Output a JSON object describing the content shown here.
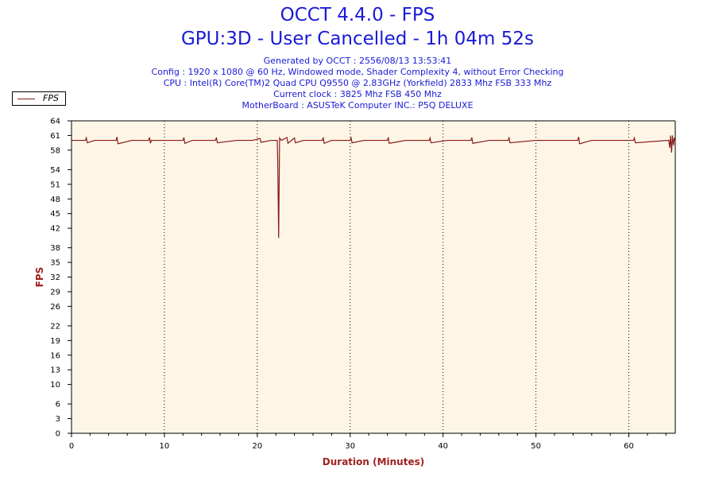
{
  "header": {
    "title": "OCCT 4.4.0 - FPS",
    "subtitle": "GPU:3D - User Cancelled - 1h 04m 52s",
    "info_lines": [
      "Generated by OCCT : 2556/08/13 13:53:41",
      "Config : 1920 x 1080 @ 60 Hz, Windowed mode, Shader Complexity 4, without Error Checking",
      "CPU : Intel(R) Core(TM)2 Quad CPU Q9550 @ 2.83GHz (Yorkfield) 2833 Mhz FSB 333 Mhz",
      "Current clock : 3825 Mhz FSB 450 Mhz",
      "MotherBoard : ASUSTeK Computer INC.: P5Q DELUXE"
    ]
  },
  "colors": {
    "plot_background": "#fdf6e6",
    "series": "#8b1a1a",
    "axis_label": "#a02020",
    "title": "#1a1ad6"
  },
  "chart_data": {
    "type": "line",
    "xlabel": "Duration (Minutes)",
    "ylabel": "FPS",
    "xlim": [
      0,
      65
    ],
    "ylim": [
      0,
      64
    ],
    "x_ticks": [
      0,
      10,
      20,
      30,
      40,
      50,
      60
    ],
    "y_ticks": [
      0,
      3,
      6,
      10,
      13,
      16,
      19,
      22,
      26,
      29,
      32,
      35,
      38,
      42,
      45,
      48,
      51,
      54,
      58,
      61,
      64
    ],
    "grid": "vertical dotted",
    "legend": "top-left",
    "series": [
      {
        "name": "FPS",
        "baseline": 60,
        "points": [
          [
            0,
            60
          ],
          [
            1.5,
            60
          ],
          [
            1.6,
            60.5
          ],
          [
            1.7,
            59.5
          ],
          [
            2.5,
            60
          ],
          [
            4.8,
            60
          ],
          [
            4.9,
            60.7
          ],
          [
            5.0,
            59.3
          ],
          [
            6.5,
            60
          ],
          [
            8.3,
            60
          ],
          [
            8.4,
            60.6
          ],
          [
            8.5,
            59.4
          ],
          [
            8.6,
            60
          ],
          [
            9.5,
            60
          ],
          [
            12.0,
            60
          ],
          [
            12.1,
            60.6
          ],
          [
            12.2,
            59.4
          ],
          [
            13.0,
            60
          ],
          [
            15.5,
            60
          ],
          [
            15.6,
            60.6
          ],
          [
            15.7,
            59.5
          ],
          [
            17.8,
            60
          ],
          [
            19.5,
            60
          ],
          [
            20.3,
            60.4
          ],
          [
            20.4,
            59.6
          ],
          [
            21.5,
            60
          ],
          [
            22.15,
            60
          ],
          [
            22.2,
            56
          ],
          [
            22.3,
            40
          ],
          [
            22.4,
            60.5
          ],
          [
            22.6,
            60
          ],
          [
            23.2,
            60.6
          ],
          [
            23.3,
            59.4
          ],
          [
            24.0,
            60.5
          ],
          [
            24.1,
            59.5
          ],
          [
            25.0,
            60
          ],
          [
            27.0,
            60
          ],
          [
            27.1,
            60.6
          ],
          [
            27.2,
            59.4
          ],
          [
            28.0,
            60
          ],
          [
            30.0,
            60
          ],
          [
            30.1,
            60.5
          ],
          [
            30.2,
            59.5
          ],
          [
            31.5,
            60
          ],
          [
            34.0,
            60
          ],
          [
            34.1,
            60.6
          ],
          [
            34.2,
            59.4
          ],
          [
            36.0,
            60
          ],
          [
            38.5,
            60
          ],
          [
            38.6,
            60.5
          ],
          [
            38.7,
            59.5
          ],
          [
            40.5,
            60
          ],
          [
            43.0,
            60
          ],
          [
            43.1,
            60.6
          ],
          [
            43.2,
            59.4
          ],
          [
            45.0,
            60
          ],
          [
            47.0,
            60
          ],
          [
            47.1,
            60.5
          ],
          [
            47.2,
            59.5
          ],
          [
            50.0,
            60
          ],
          [
            54.5,
            60
          ],
          [
            54.6,
            60.7
          ],
          [
            54.7,
            59.3
          ],
          [
            56.0,
            60
          ],
          [
            60.5,
            60
          ],
          [
            60.6,
            60.5
          ],
          [
            60.7,
            59.5
          ],
          [
            64.3,
            60
          ],
          [
            64.4,
            58.5
          ],
          [
            64.5,
            61
          ],
          [
            64.6,
            57.5
          ],
          [
            64.7,
            61
          ],
          [
            64.8,
            59
          ],
          [
            64.9,
            60.5
          ],
          [
            65.0,
            60
          ]
        ]
      }
    ]
  }
}
